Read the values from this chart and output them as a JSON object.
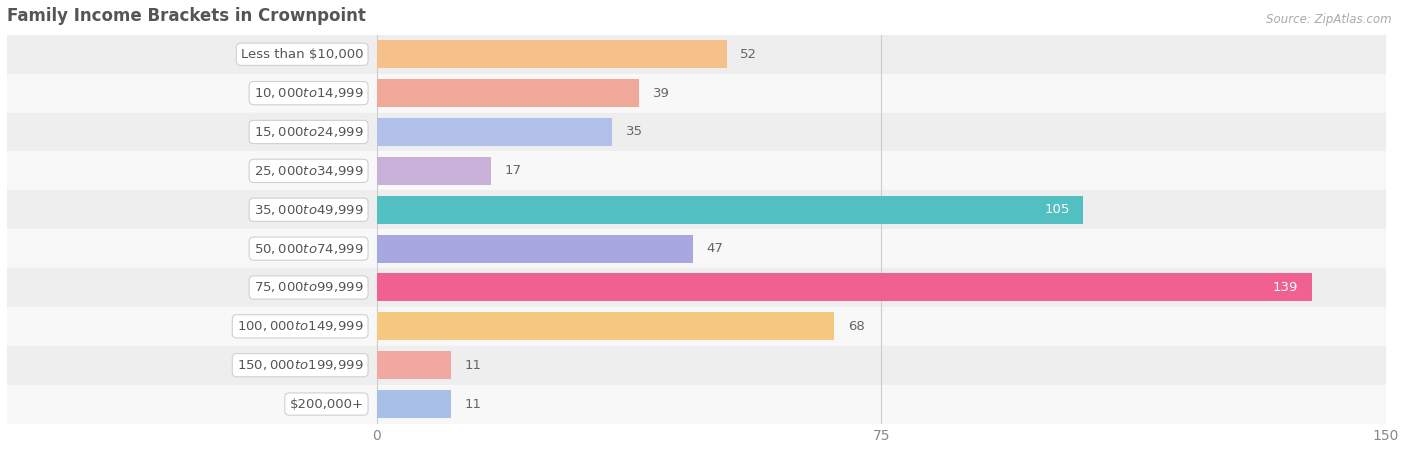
{
  "title": "Family Income Brackets in Crownpoint",
  "source": "Source: ZipAtlas.com",
  "categories": [
    "Less than $10,000",
    "$10,000 to $14,999",
    "$15,000 to $24,999",
    "$25,000 to $34,999",
    "$35,000 to $49,999",
    "$50,000 to $74,999",
    "$75,000 to $99,999",
    "$100,000 to $149,999",
    "$150,000 to $199,999",
    "$200,000+"
  ],
  "values": [
    52,
    39,
    35,
    17,
    105,
    47,
    139,
    68,
    11,
    11
  ],
  "bar_colors": [
    "#F5C08A",
    "#F0A898",
    "#B0C0E8",
    "#C8B0D8",
    "#52C0C0",
    "#A8A8E0",
    "#F06090",
    "#F5C880",
    "#F0A8A0",
    "#A8C0E8"
  ],
  "value_label_inside": [
    false,
    false,
    false,
    false,
    true,
    false,
    true,
    false,
    false,
    false
  ],
  "xlim_left": -55,
  "xlim_right": 150,
  "xticks": [
    0,
    75,
    150
  ],
  "bar_bg_colors": [
    "#eeeeee",
    "#f8f8f8"
  ],
  "bar_height": 0.72,
  "title_fontsize": 12,
  "label_fontsize": 9.5,
  "tick_fontsize": 10,
  "value_fontsize": 9.5,
  "title_color": "#555555",
  "label_text_color": "#555555",
  "value_color_outside": "#666666",
  "value_color_inside": "#ffffff",
  "source_fontsize": 8.5
}
